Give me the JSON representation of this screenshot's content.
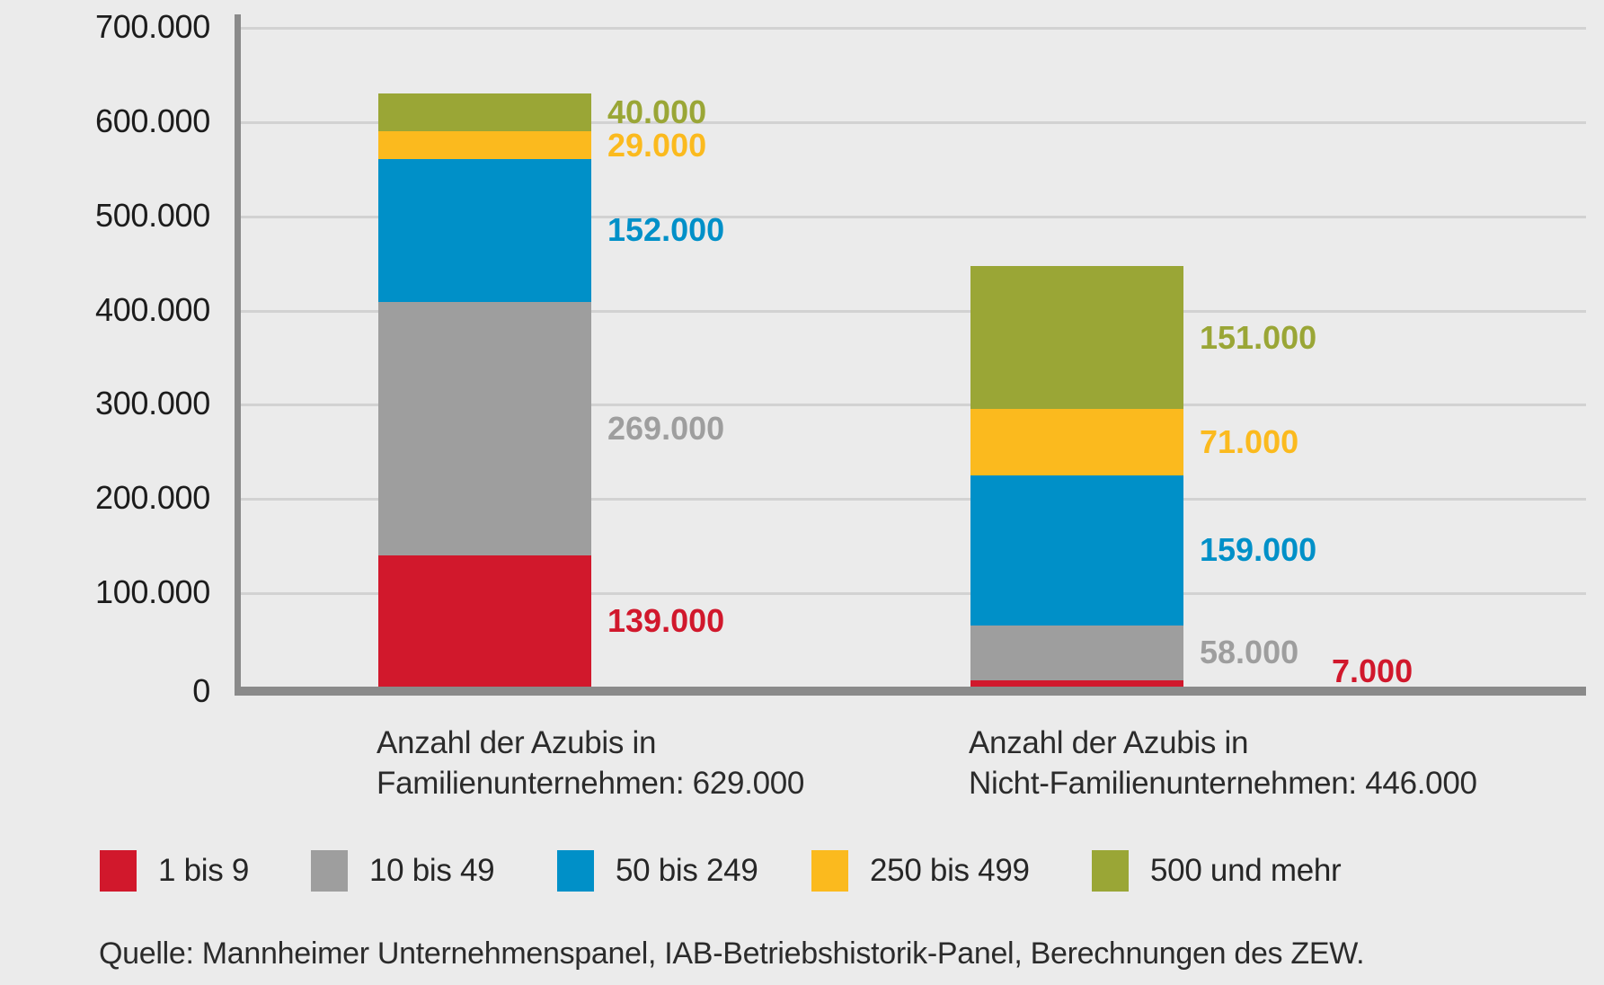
{
  "chart_data": {
    "type": "bar",
    "stacked": true,
    "title": "",
    "grid": true,
    "y_axis": {
      "min": 0,
      "max": 700000,
      "tick_step": 100000,
      "tick_labels": [
        "0",
        "100.000",
        "200.000",
        "300.000",
        "400.000",
        "500.000",
        "600.000",
        "700.000"
      ]
    },
    "categories": [
      {
        "label_line1": "Anzahl der Azubis in",
        "label_line2": "Familienunternehmen: 629.000",
        "total": 629000
      },
      {
        "label_line1": "Anzahl der Azubis in",
        "label_line2": "Nicht-Familienunternehmen: 446.000",
        "total": 446000
      }
    ],
    "series": [
      {
        "name": "1 bis 9",
        "color": "#d1182c",
        "values": [
          139000,
          7000
        ],
        "value_labels": [
          "139.000",
          "7.000"
        ]
      },
      {
        "name": "10 bis 49",
        "color": "#9e9e9e",
        "values": [
          269000,
          58000
        ],
        "value_labels": [
          "269.000",
          "58.000"
        ]
      },
      {
        "name": "50 bis 249",
        "color": "#0090c8",
        "values": [
          152000,
          159000
        ],
        "value_labels": [
          "152.000",
          "159.000"
        ]
      },
      {
        "name": "250 bis 499",
        "color": "#fbba1e",
        "values": [
          29000,
          71000
        ],
        "value_labels": [
          "29.000",
          "71.000"
        ]
      },
      {
        "name": "500 und mehr",
        "color": "#9aa636",
        "values": [
          40000,
          151000
        ],
        "value_labels": [
          "40.000",
          "151.000"
        ]
      }
    ],
    "legend": {
      "position": "bottom",
      "items": [
        "1 bis 9",
        "10 bis 49",
        "50 bis 249",
        "250 bis 499",
        "500 und mehr"
      ]
    },
    "source": "Quelle: Mannheimer Unternehmenspanel, IAB-Betriebshistorik-Panel, Berechnungen des ZEW."
  },
  "colors": {
    "background": "#ebebeb",
    "axis": "#8a8a8a",
    "gridline": "#d2d2d2",
    "tick_text": "#1c1c1c",
    "label_text": "#2b2b2b"
  }
}
